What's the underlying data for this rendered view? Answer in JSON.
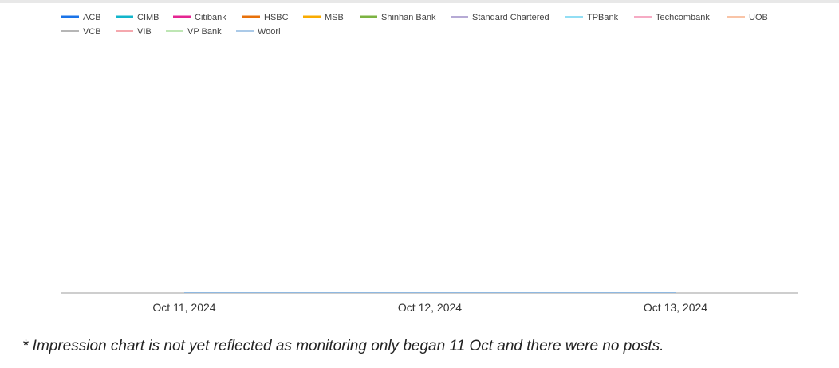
{
  "chart_data": {
    "type": "line",
    "title": "",
    "xlabel": "",
    "ylabel": "",
    "x_ticks": [
      "Oct 11, 2024",
      "Oct 12, 2024",
      "Oct 13, 2024"
    ],
    "x": [
      "Oct 11, 2024",
      "Oct 12, 2024",
      "Oct 13, 2024"
    ],
    "grid": false,
    "legend_position": "top",
    "series": [
      {
        "name": "ACB",
        "color": "#1a73e8",
        "values": [
          0,
          0,
          0
        ]
      },
      {
        "name": "CIMB",
        "color": "#12b5cb",
        "values": [
          0,
          0,
          0
        ]
      },
      {
        "name": "Citibank",
        "color": "#e52592",
        "values": [
          0,
          0,
          0
        ]
      },
      {
        "name": "HSBC",
        "color": "#e8710a",
        "values": [
          0,
          0,
          0
        ]
      },
      {
        "name": "MSB",
        "color": "#f9ab00",
        "values": [
          0,
          0,
          0
        ]
      },
      {
        "name": "Shinhan Bank",
        "color": "#7cb342",
        "values": [
          0,
          0,
          0
        ]
      },
      {
        "name": "Standard Chartered",
        "color": "#9e8ec7",
        "values": [
          0,
          0,
          0
        ]
      },
      {
        "name": "TPBank",
        "color": "#6fd3f0",
        "values": [
          0,
          0,
          0
        ]
      },
      {
        "name": "Techcombank",
        "color": "#f48fb1",
        "values": [
          0,
          0,
          0
        ]
      },
      {
        "name": "UOB",
        "color": "#f7b08a",
        "values": [
          0,
          0,
          0
        ]
      },
      {
        "name": "VCB",
        "color": "#9e9e9e",
        "values": [
          0,
          0,
          0
        ]
      },
      {
        "name": "VIB",
        "color": "#f28b94",
        "values": [
          0,
          0,
          0
        ]
      },
      {
        "name": "VP Bank",
        "color": "#a8dd9c",
        "values": [
          0,
          0,
          0
        ]
      },
      {
        "name": "Woori",
        "color": "#8fb8e0",
        "values": [
          0,
          0,
          0
        ]
      }
    ]
  },
  "footnote": "* Impression chart is not yet reflected as monitoring only began 11 Oct and there were no posts."
}
